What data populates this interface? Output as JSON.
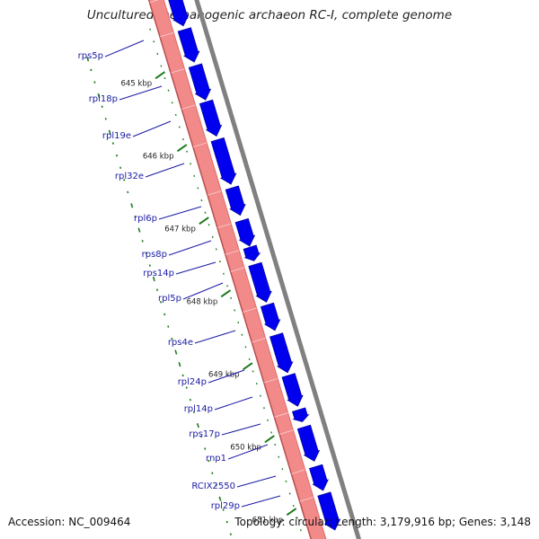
{
  "title": "Uncultured methanogenic archaeon RC-I, complete genome",
  "footer": {
    "accession": "Accession: NC_009464",
    "summary": "Topology: circular; Length: 3,179,916 bp; Genes: 3,148"
  },
  "colors": {
    "gene_label": "#1a1aa6",
    "gene_arrow": "#0000ee",
    "backbone_fill": "#f28a8a",
    "backbone_edge": "#b85050",
    "outer_ring": "#808080",
    "gc_tick": "#1d7a1d"
  },
  "kbp_ticks": [
    {
      "label": "645 kbp"
    },
    {
      "label": "646 kbp"
    },
    {
      "label": "647 kbp"
    },
    {
      "label": "648 kbp"
    },
    {
      "label": "649 kbp"
    },
    {
      "label": "650 kbp"
    },
    {
      "label": "651 kbp"
    }
  ],
  "genes": [
    {
      "label": "rps5p"
    },
    {
      "label": "rpl18p"
    },
    {
      "label": "rpl19e"
    },
    {
      "label": "rpl32e"
    },
    {
      "label": "rpl6p"
    },
    {
      "label": "rps8p"
    },
    {
      "label": "rps14p"
    },
    {
      "label": "rpl5p"
    },
    {
      "label": "rps4e"
    },
    {
      "label": "rpl24p"
    },
    {
      "label": "rpl14p"
    },
    {
      "label": "rps17p"
    },
    {
      "label": "rnp1"
    },
    {
      "label": "RCIX2550"
    },
    {
      "label": "rpl29p"
    }
  ],
  "icons": [
    "circular-genome-map"
  ]
}
